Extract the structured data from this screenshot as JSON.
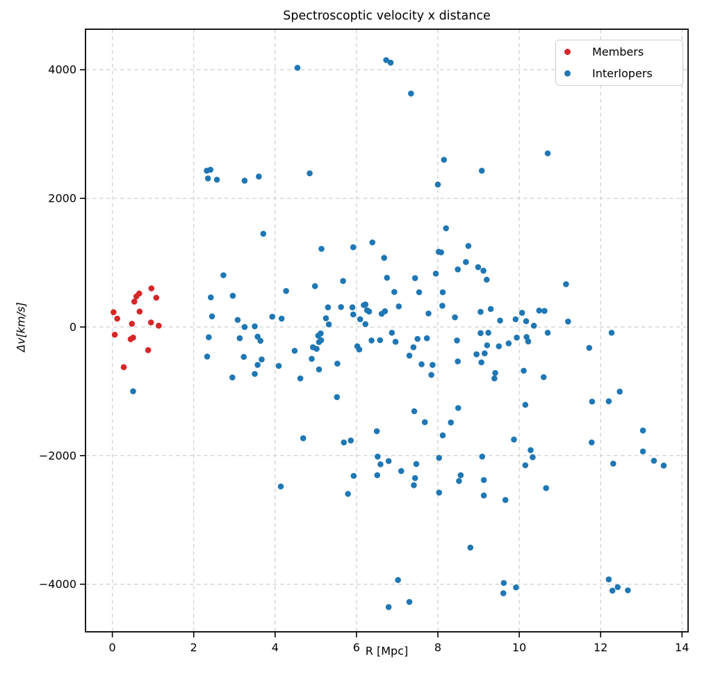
{
  "chart_data": {
    "type": "scatter",
    "title": "Spectroscoptic velocity x distance",
    "xlabel": "R [Mpc]",
    "ylabel": "Δv[km/s]",
    "xlim": [
      -0.66,
      14.15
    ],
    "ylim": [
      -4740,
      4630
    ],
    "xticks": [
      0,
      2,
      4,
      6,
      8,
      10,
      12,
      14
    ],
    "yticks": [
      -4000,
      -2000,
      0,
      2000,
      4000
    ],
    "grid": {
      "on": true,
      "style": "dashed",
      "color": "#c9c9c9"
    },
    "legend": {
      "position": "upper right"
    },
    "series": [
      {
        "name": "Members",
        "color": "#d62728",
        "points": [
          [
            0.03,
            230
          ],
          [
            0.06,
            -120
          ],
          [
            0.12,
            130
          ],
          [
            0.28,
            -625
          ],
          [
            0.45,
            -190
          ],
          [
            0.48,
            50
          ],
          [
            0.51,
            -165
          ],
          [
            0.54,
            395
          ],
          [
            0.59,
            475
          ],
          [
            0.66,
            520
          ],
          [
            0.67,
            240
          ],
          [
            0.88,
            -360
          ],
          [
            0.95,
            70
          ],
          [
            0.96,
            600
          ],
          [
            1.08,
            455
          ],
          [
            1.14,
            20
          ]
        ]
      },
      {
        "name": "Interlopers",
        "color": "#1f77b4",
        "points": [
          [
            0.51,
            -1000
          ],
          [
            2.32,
            2430
          ],
          [
            2.35,
            2310
          ],
          [
            2.37,
            -160
          ],
          [
            2.33,
            -460
          ],
          [
            2.41,
            2445
          ],
          [
            2.42,
            460
          ],
          [
            2.45,
            165
          ],
          [
            2.57,
            2290
          ],
          [
            2.73,
            805
          ],
          [
            2.95,
            -785
          ],
          [
            2.96,
            485
          ],
          [
            3.08,
            110
          ],
          [
            3.13,
            -175
          ],
          [
            3.23,
            -465
          ],
          [
            3.25,
            2275
          ],
          [
            3.25,
            0
          ],
          [
            3.5,
            10
          ],
          [
            3.5,
            -730
          ],
          [
            3.57,
            -150
          ],
          [
            3.57,
            -590
          ],
          [
            3.6,
            2340
          ],
          [
            3.64,
            -215
          ],
          [
            3.67,
            -505
          ],
          [
            3.71,
            1450
          ],
          [
            3.93,
            160
          ],
          [
            4.09,
            -605
          ],
          [
            4.14,
            -2480
          ],
          [
            4.16,
            130
          ],
          [
            4.27,
            560
          ],
          [
            4.48,
            -370
          ],
          [
            4.55,
            4030
          ],
          [
            4.62,
            -800
          ],
          [
            4.69,
            -1730
          ],
          [
            4.85,
            2390
          ],
          [
            4.9,
            -495
          ],
          [
            4.93,
            -315
          ],
          [
            4.98,
            635
          ],
          [
            5.02,
            -340
          ],
          [
            5.06,
            -135
          ],
          [
            5.08,
            -235
          ],
          [
            5.08,
            -660
          ],
          [
            5.12,
            -100
          ],
          [
            5.13,
            -205
          ],
          [
            5.14,
            1215
          ],
          [
            5.25,
            135
          ],
          [
            5.3,
            305
          ],
          [
            5.32,
            40
          ],
          [
            5.52,
            -1090
          ],
          [
            5.53,
            -570
          ],
          [
            5.62,
            310
          ],
          [
            5.67,
            715
          ],
          [
            5.69,
            -1795
          ],
          [
            5.79,
            -2595
          ],
          [
            5.86,
            -1765
          ],
          [
            5.9,
            305
          ],
          [
            5.92,
            1240
          ],
          [
            5.92,
            195
          ],
          [
            5.93,
            -2315
          ],
          [
            6.02,
            -300
          ],
          [
            6.07,
            -350
          ],
          [
            6.09,
            120
          ],
          [
            6.18,
            340
          ],
          [
            6.22,
            350
          ],
          [
            6.22,
            45
          ],
          [
            6.26,
            260
          ],
          [
            6.31,
            240
          ],
          [
            6.37,
            -210
          ],
          [
            6.39,
            1315
          ],
          [
            6.5,
            -1620
          ],
          [
            6.51,
            -2305
          ],
          [
            6.52,
            -2015
          ],
          [
            6.58,
            -205
          ],
          [
            6.59,
            -2135
          ],
          [
            6.62,
            205
          ],
          [
            6.68,
            1075
          ],
          [
            6.7,
            245
          ],
          [
            6.73,
            4150
          ],
          [
            6.75,
            765
          ],
          [
            6.79,
            -2085
          ],
          [
            6.79,
            -4355
          ],
          [
            6.84,
            4110
          ],
          [
            6.87,
            -90
          ],
          [
            6.93,
            545
          ],
          [
            6.96,
            -230
          ],
          [
            7.02,
            -3935
          ],
          [
            7.04,
            320
          ],
          [
            7.1,
            -2240
          ],
          [
            7.3,
            -445
          ],
          [
            7.3,
            -4275
          ],
          [
            7.34,
            3630
          ],
          [
            7.4,
            -315
          ],
          [
            7.41,
            -2460
          ],
          [
            7.42,
            -1310
          ],
          [
            7.44,
            760
          ],
          [
            7.44,
            -2350
          ],
          [
            7.47,
            -2130
          ],
          [
            7.5,
            -185
          ],
          [
            7.54,
            540
          ],
          [
            7.6,
            -580
          ],
          [
            7.68,
            -1480
          ],
          [
            7.73,
            -175
          ],
          [
            7.77,
            210
          ],
          [
            7.84,
            -745
          ],
          [
            7.87,
            -590
          ],
          [
            7.95,
            830
          ],
          [
            8.0,
            2215
          ],
          [
            8.02,
            1170
          ],
          [
            8.03,
            -2035
          ],
          [
            8.03,
            -2575
          ],
          [
            8.08,
            1160
          ],
          [
            8.11,
            330
          ],
          [
            8.12,
            540
          ],
          [
            8.12,
            -1685
          ],
          [
            8.15,
            2600
          ],
          [
            8.2,
            1535
          ],
          [
            8.32,
            -1485
          ],
          [
            8.42,
            150
          ],
          [
            8.47,
            -210
          ],
          [
            8.49,
            895
          ],
          [
            8.49,
            -535
          ],
          [
            8.5,
            -1260
          ],
          [
            8.52,
            -2395
          ],
          [
            8.56,
            -2305
          ],
          [
            8.69,
            1010
          ],
          [
            8.75,
            1260
          ],
          [
            8.8,
            -3430
          ],
          [
            8.95,
            -425
          ],
          [
            8.99,
            930
          ],
          [
            9.05,
            235
          ],
          [
            9.05,
            -95
          ],
          [
            9.07,
            -550
          ],
          [
            9.08,
            2430
          ],
          [
            9.09,
            -2015
          ],
          [
            9.12,
            875
          ],
          [
            9.13,
            -2380
          ],
          [
            9.13,
            -2620
          ],
          [
            9.15,
            -410
          ],
          [
            9.2,
            735
          ],
          [
            9.21,
            -285
          ],
          [
            9.24,
            -90
          ],
          [
            9.3,
            280
          ],
          [
            9.39,
            -800
          ],
          [
            9.41,
            -715
          ],
          [
            9.5,
            -300
          ],
          [
            9.53,
            100
          ],
          [
            9.61,
            -4140
          ],
          [
            9.62,
            -3980
          ],
          [
            9.66,
            -2690
          ],
          [
            9.74,
            -255
          ],
          [
            9.87,
            -1750
          ],
          [
            9.91,
            120
          ],
          [
            9.92,
            -4050
          ],
          [
            9.94,
            -165
          ],
          [
            10.07,
            220
          ],
          [
            10.11,
            -680
          ],
          [
            10.15,
            -1210
          ],
          [
            10.15,
            -2150
          ],
          [
            10.17,
            90
          ],
          [
            10.18,
            -155
          ],
          [
            10.22,
            -225
          ],
          [
            10.28,
            -1915
          ],
          [
            10.33,
            -2025
          ],
          [
            10.36,
            20
          ],
          [
            10.49,
            255
          ],
          [
            10.6,
            -780
          ],
          [
            10.62,
            250
          ],
          [
            10.66,
            -2505
          ],
          [
            10.7,
            2700
          ],
          [
            10.7,
            -90
          ],
          [
            11.15,
            665
          ],
          [
            11.2,
            85
          ],
          [
            11.72,
            -325
          ],
          [
            11.78,
            -1795
          ],
          [
            11.79,
            -1160
          ],
          [
            12.2,
            -1155
          ],
          [
            12.2,
            -3925
          ],
          [
            12.27,
            -90
          ],
          [
            12.29,
            -4100
          ],
          [
            12.31,
            -2125
          ],
          [
            12.42,
            -4045
          ],
          [
            12.47,
            -1005
          ],
          [
            12.67,
            -4095
          ],
          [
            13.04,
            -1610
          ],
          [
            13.04,
            -1935
          ],
          [
            13.31,
            -2080
          ],
          [
            13.55,
            -2155
          ]
        ]
      }
    ]
  }
}
